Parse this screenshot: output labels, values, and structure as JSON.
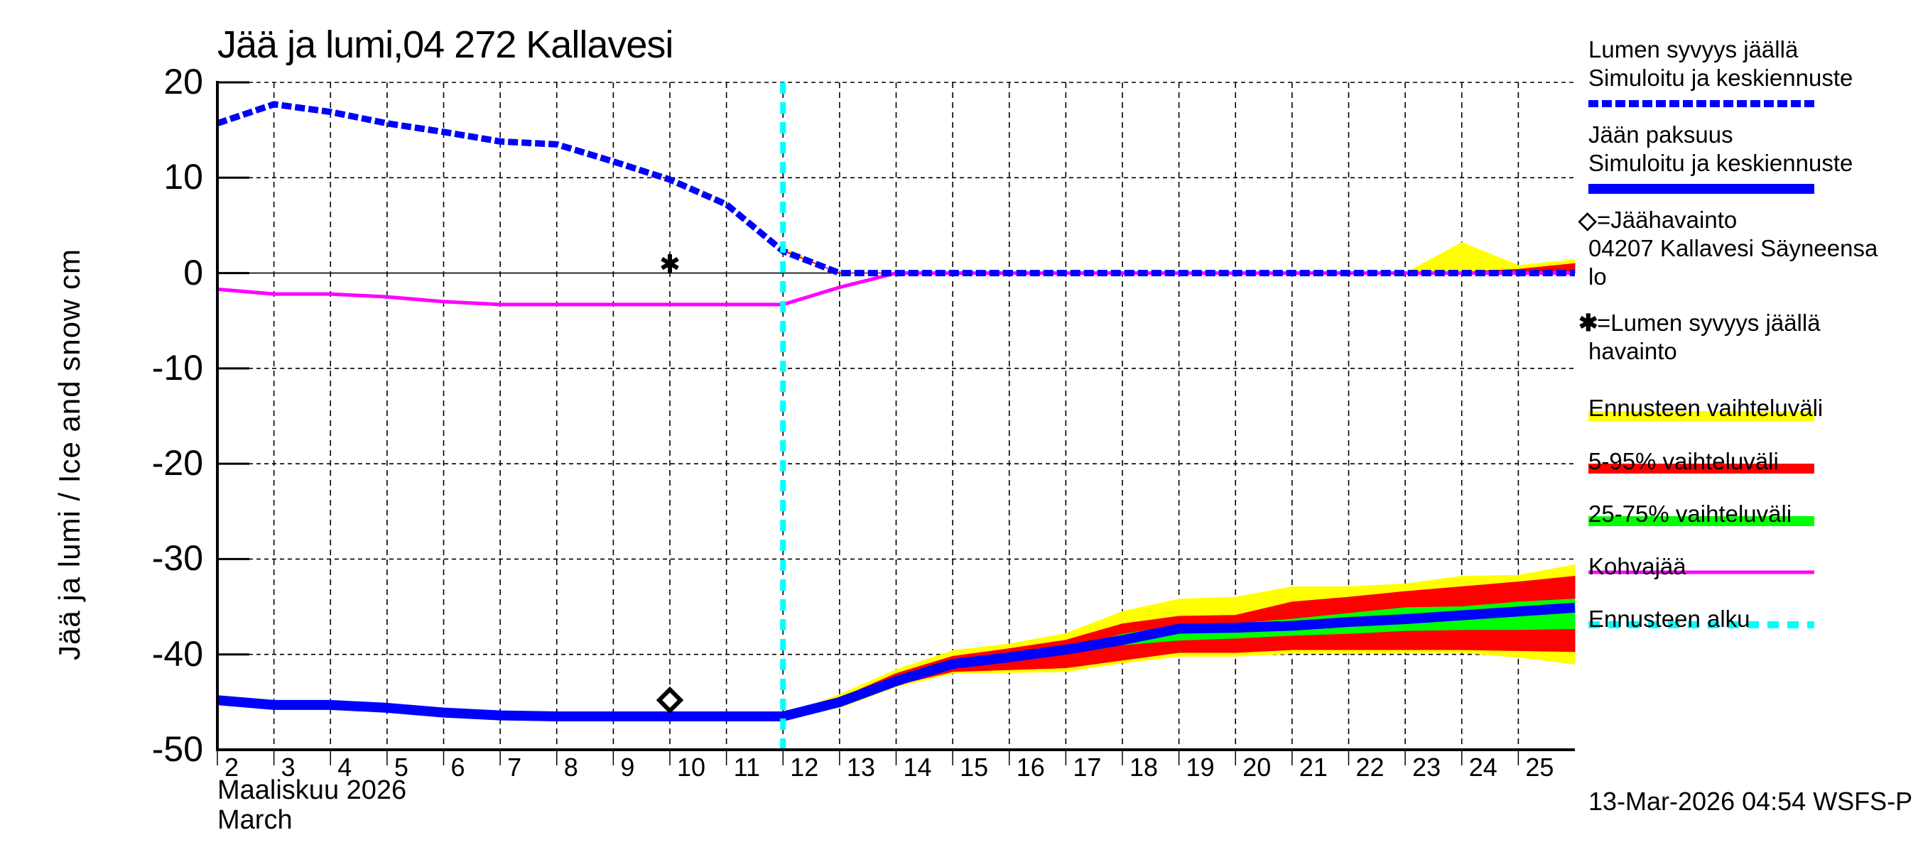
{
  "title": "Jää ja lumi,04 272 Kallavesi",
  "y_axis_title": "Jää ja lumi / Ice and snow    cm",
  "x_axis": {
    "month_fi": "Maaliskuu 2026",
    "month_en": "March",
    "tick_labels": [
      "2",
      "3",
      "4",
      "5",
      "6",
      "7",
      "8",
      "9",
      "10",
      "11",
      "12",
      "13",
      "14",
      "15",
      "16",
      "17",
      "18",
      "19",
      "20",
      "21",
      "22",
      "23",
      "24",
      "25"
    ]
  },
  "y_axis": {
    "tick_labels": [
      "20",
      "10",
      "0",
      "-10",
      "-20",
      "-30",
      "-40",
      "-50"
    ]
  },
  "timestamp": "13-Mar-2026 04:54 WSFS-P",
  "legend": {
    "snow_title": "Lumen syvyys jäällä",
    "snow_sub": "Simuloitu ja keskiennuste",
    "ice_title": "Jään paksuus",
    "ice_sub": "Simuloitu ja keskiennuste",
    "ice_obs_symbol": "◇",
    "ice_obs_label": "=Jäähavainto",
    "ice_obs_station_1": "04207 Kallavesi Säyneensa",
    "ice_obs_station_2": "lo",
    "snow_obs_symbol": "✱",
    "snow_obs_label": "=Lumen syvyys jäällä",
    "snow_obs_label_2": "havainto",
    "range_full": "Ennusteen vaihteluväli",
    "range_5_95": "5-95% vaihteluväli",
    "range_25_75": "25-75% vaihteluväli",
    "slush": "Kohvajää",
    "forecast_start": "Ennusteen alku"
  },
  "colors": {
    "snow": "#0000ff",
    "ice": "#0000ff",
    "range_full": "#ffff00",
    "range_5_95": "#ff0000",
    "range_25_75": "#00ff00",
    "slush": "#ff00ff",
    "forecast_start": "#00ffff"
  },
  "chart_data": {
    "type": "line",
    "title": "Jää ja lumi,04 272 Kallavesi",
    "xlabel": "Maaliskuu 2026 / March",
    "ylabel": "Jää ja lumi / Ice and snow cm",
    "xlim": [
      2,
      26
    ],
    "ylim": [
      -50,
      20
    ],
    "grid": true,
    "legend_position": "right",
    "forecast_start_day": 12,
    "x": [
      2,
      3,
      4,
      5,
      6,
      7,
      8,
      9,
      10,
      11,
      12,
      13,
      14,
      15,
      16,
      17,
      18,
      19,
      20,
      21,
      22,
      23,
      24,
      25,
      26
    ],
    "series": [
      {
        "name": "Lumen syvyys jäällä – Simuloitu ja keskiennuste",
        "style": "dashed",
        "values": [
          15.7,
          17.7,
          16.9,
          15.7,
          14.8,
          13.8,
          13.5,
          11.7,
          9.8,
          7.2,
          2.3,
          0,
          0,
          0,
          0,
          0,
          0,
          0,
          0,
          0,
          0,
          0,
          0,
          0,
          0
        ]
      },
      {
        "name": "Jään paksuus – Simuloitu ja keskiennuste",
        "style": "solid-thick",
        "values": [
          -44.8,
          -45.3,
          -45.3,
          -45.6,
          -46.1,
          -46.4,
          -46.5,
          -46.5,
          -46.5,
          -46.5,
          -46.5,
          -45.0,
          -42.8,
          -41.0,
          -40.3,
          -39.5,
          -38.5,
          -37.3,
          -37.2,
          -37.0,
          -36.6,
          -36.3,
          -35.9,
          -35.5,
          -35.1
        ]
      },
      {
        "name": "Kohvajää",
        "style": "solid",
        "values": [
          -1.7,
          -2.2,
          -2.2,
          -2.5,
          -3.0,
          -3.3,
          -3.3,
          -3.3,
          -3.3,
          -3.3,
          -3.3,
          -1.5,
          0,
          0,
          0,
          0,
          0,
          0,
          0,
          0,
          0,
          0,
          0,
          0,
          0
        ]
      }
    ],
    "bands": {
      "x": [
        12,
        13,
        14,
        15,
        16,
        17,
        18,
        19,
        20,
        21,
        22,
        23,
        24,
        25,
        26
      ],
      "ice_full": {
        "upper": [
          -46.5,
          -44.2,
          -41.6,
          -39.6,
          -38.9,
          -37.8,
          -35.5,
          -34.2,
          -34.0,
          -32.9,
          -32.9,
          -32.6,
          -31.8,
          -31.7,
          -30.6
        ],
        "lower": [
          -46.5,
          -45.6,
          -43.4,
          -42.0,
          -41.9,
          -41.8,
          -40.9,
          -40.2,
          -40.2,
          -39.9,
          -39.9,
          -39.8,
          -39.8,
          -40.3,
          -41.0
        ]
      },
      "ice_5_95": {
        "upper": [
          -46.5,
          -44.6,
          -42.0,
          -40.2,
          -39.4,
          -38.5,
          -36.8,
          -36.0,
          -35.9,
          -34.5,
          -34.0,
          -33.4,
          -32.9,
          -32.4,
          -31.8
        ],
        "lower": [
          -46.5,
          -45.5,
          -43.2,
          -41.8,
          -41.6,
          -41.4,
          -40.6,
          -39.8,
          -39.8,
          -39.5,
          -39.5,
          -39.5,
          -39.5,
          -39.6,
          -39.7
        ]
      },
      "ice_25_75": {
        "upper": [
          -46.5,
          -45.0,
          -42.6,
          -40.8,
          -40.0,
          -39.3,
          -37.9,
          -36.9,
          -36.8,
          -36.3,
          -35.7,
          -35.1,
          -35.0,
          -34.5,
          -34.2
        ],
        "lower": [
          -46.5,
          -45.1,
          -42.9,
          -41.2,
          -40.6,
          -39.8,
          -39.0,
          -38.5,
          -38.3,
          -38.0,
          -37.8,
          -37.5,
          -37.4,
          -37.4,
          -37.3
        ]
      },
      "snow_full": {
        "upper": [
          2.6,
          0,
          0,
          0,
          0,
          0,
          0,
          0,
          0,
          0,
          0,
          0,
          3.2,
          0.8,
          1.4
        ],
        "lower": [
          2.3,
          0,
          0,
          0,
          0,
          0,
          0,
          0,
          0,
          0,
          0,
          0,
          0,
          0,
          0
        ]
      },
      "snow_5_95": {
        "upper": [
          2.4,
          0,
          0,
          0,
          0,
          0,
          0,
          0,
          0,
          0,
          0,
          0,
          0.1,
          0.4,
          1.0
        ],
        "lower": [
          2.3,
          0,
          0,
          0,
          0,
          0,
          0,
          0,
          0,
          0,
          0,
          0,
          0,
          0,
          0
        ]
      }
    },
    "observations": [
      {
        "type": "ice",
        "symbol": "diamond",
        "day": 10,
        "value": -44.8
      },
      {
        "type": "snow",
        "symbol": "asterisk",
        "day": 10,
        "value": 1.0
      }
    ]
  }
}
